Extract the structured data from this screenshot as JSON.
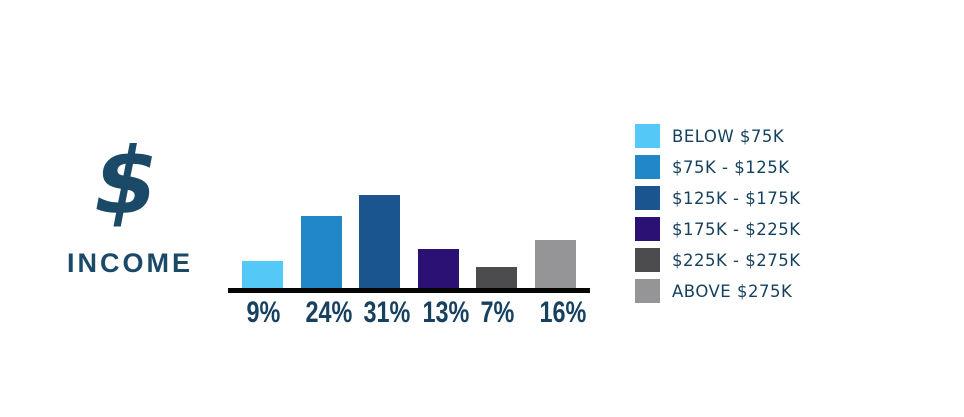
{
  "header": {
    "dollar_glyph": "$",
    "title": "INCOME",
    "title_color": "#1b4a68"
  },
  "chart_data": {
    "type": "bar",
    "title": "INCOME",
    "categories": [
      "BELOW $75K",
      "$75K - $125K",
      "$125K - $175K",
      "$175K - $225K",
      "$225K - $275K",
      "ABOVE $275K"
    ],
    "values": [
      9,
      24,
      31,
      13,
      7,
      16
    ],
    "value_labels": [
      "9%",
      "24%",
      "31%",
      "13%",
      "7%",
      "16%"
    ],
    "colors": [
      "#54c8f7",
      "#2287c6",
      "#1a5590",
      "#2b1173",
      "#4c4c4e",
      "#959597"
    ],
    "unit": "percent",
    "xlabel": "",
    "ylabel": "",
    "ylim": [
      0,
      32
    ],
    "grid": false,
    "legend_position": "right",
    "axis_color": "#060606",
    "value_label_color": "#17415f",
    "legend_text_color": "#16415e"
  }
}
